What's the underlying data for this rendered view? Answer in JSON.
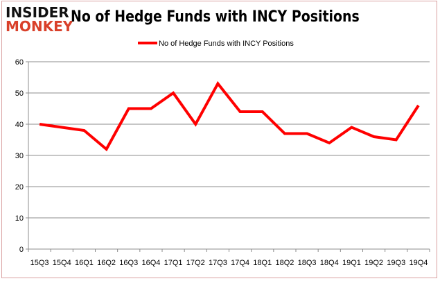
{
  "logo": {
    "line1": "INSIDER",
    "line2": "MONKEY"
  },
  "chart_data": {
    "type": "line",
    "title": "No of Hedge Funds with INCY Positions",
    "xlabel": "",
    "ylabel": "",
    "categories": [
      "15Q3",
      "15Q4",
      "16Q1",
      "16Q2",
      "16Q3",
      "16Q4",
      "17Q1",
      "17Q2",
      "17Q3",
      "17Q4",
      "18Q1",
      "18Q2",
      "18Q3",
      "18Q4",
      "19Q1",
      "19Q2",
      "19Q3",
      "19Q4"
    ],
    "series": [
      {
        "name": "No of Hedge Funds with INCY Positions",
        "values": [
          40,
          39,
          38,
          32,
          45,
          45,
          50,
          40,
          53,
          44,
          44,
          37,
          37,
          34,
          39,
          36,
          35,
          46
        ],
        "color": "#ff0000"
      }
    ],
    "ylim": [
      0,
      60
    ],
    "yticks": [
      0,
      10,
      20,
      30,
      40,
      50,
      60
    ],
    "grid": true,
    "legend_position": "top"
  }
}
